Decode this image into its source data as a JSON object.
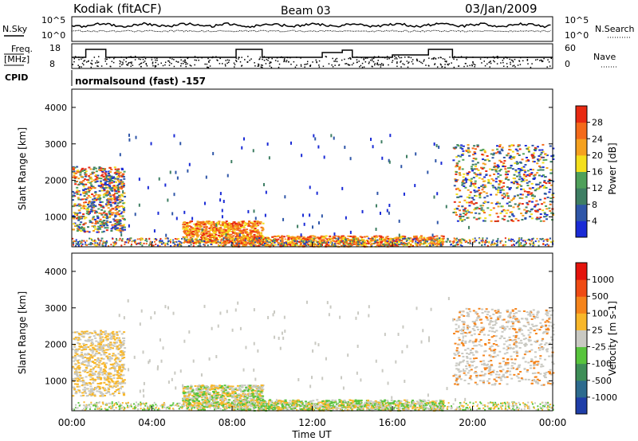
{
  "header": {
    "station": "Kodiak (fitACF)",
    "beam": "Beam 03",
    "date": "03/Jan/2009"
  },
  "top_panels": {
    "nsky_label": "N.Sky",
    "nsky_ticks": [
      "10^5",
      "10^0"
    ],
    "nsearch_label": "N.Search",
    "nsearch_ticks": [
      "10^5",
      "10^0"
    ],
    "freq_label": "Freq.",
    "freq_unit": "[MHz]",
    "freq_ticks": [
      "18",
      "8"
    ],
    "nave_label": "Nave",
    "nave_ticks": [
      "60",
      "0"
    ],
    "cpid_label": "CPID",
    "cpid_text": "normalsound (fast) -157"
  },
  "chart_data": [
    {
      "type": "heatmap",
      "title": "",
      "ylabel": "Slant Range [km]",
      "yticks": [
        "1000",
        "2000",
        "3000",
        "4000"
      ],
      "ylim": [
        180,
        4500
      ],
      "colorbar_label": "Power [dB]",
      "colorbar_ticks": [
        "4",
        "8",
        "12",
        "16",
        "20",
        "24",
        "28"
      ],
      "colorbar_colors": [
        "#1a2bd6",
        "#2f56a8",
        "#3e7e63",
        "#4fa05a",
        "#f4df1c",
        "#f5a11f",
        "#f46a1a",
        "#e82a12"
      ],
      "blobs": [
        {
          "t0": 0.0,
          "t1": 2.6,
          "r0": 600,
          "r1": 2400,
          "level": "mixed"
        },
        {
          "t0": 5.5,
          "t1": 9.5,
          "r0": 300,
          "r1": 900,
          "level": "high"
        },
        {
          "t0": 8.0,
          "t1": 18.5,
          "r0": 200,
          "r1": 500,
          "level": "high"
        },
        {
          "t0": 19.0,
          "t1": 24.0,
          "r0": 900,
          "r1": 3000,
          "level": "mixed"
        }
      ]
    },
    {
      "type": "heatmap",
      "title": "",
      "ylabel": "Slant Range [km]",
      "yticks": [
        "1000",
        "2000",
        "3000",
        "4000"
      ],
      "ylim": [
        180,
        4500
      ],
      "xlabel": "Time UT",
      "xticks": [
        "00:00",
        "04:00",
        "08:00",
        "12:00",
        "16:00",
        "20:00",
        "00:00"
      ],
      "colorbar_label": "Velocity [m s-1]",
      "colorbar_ticks": [
        "1000",
        "500",
        "100",
        "25",
        "-25",
        "-100",
        "-500",
        "-1000"
      ],
      "colorbar_colors": [
        "#1f3ea8",
        "#2d6b8e",
        "#3e8e57",
        "#57c43c",
        "#c9c9c2",
        "#f8b72a",
        "#f5841b",
        "#ef4b14",
        "#e4130c"
      ]
    }
  ]
}
